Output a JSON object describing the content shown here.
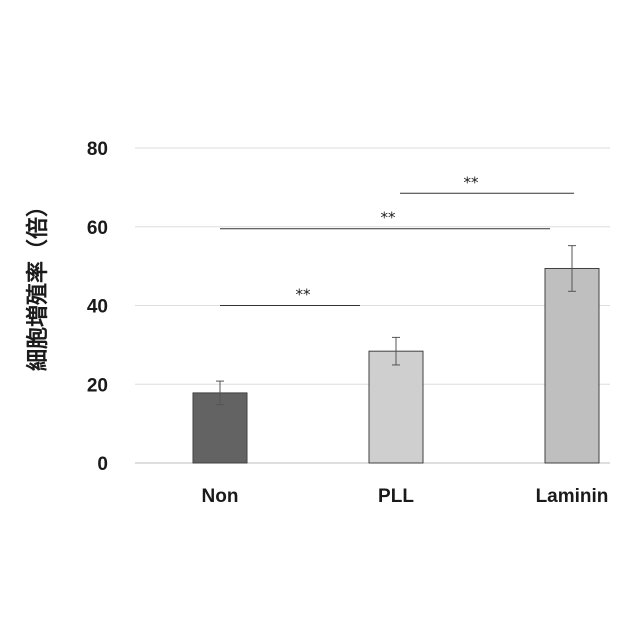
{
  "chart_data": {
    "type": "bar",
    "title": "",
    "xlabel": "",
    "ylabel": "細胞増殖率（倍）",
    "categories": [
      "Non",
      "PLL",
      "Laminin"
    ],
    "values": [
      17.8,
      28.4,
      49.4
    ],
    "errors": [
      3.0,
      3.5,
      5.8
    ],
    "bar_colors": [
      "#636363",
      "#cfcfcf",
      "#bfbfbf"
    ],
    "ylim": [
      0,
      80
    ],
    "yticks": [
      0,
      20,
      40,
      60,
      80
    ],
    "ytick_labels": [
      "0",
      "20",
      "40",
      "60",
      "80"
    ],
    "grid": true,
    "significance": [
      {
        "from": 0,
        "to": 1,
        "y": 40,
        "label": "**"
      },
      {
        "from": 0,
        "to": 2,
        "y": 59.5,
        "label": "**"
      },
      {
        "from": 1,
        "to": 2,
        "y": 68.5,
        "label": "**"
      }
    ]
  }
}
